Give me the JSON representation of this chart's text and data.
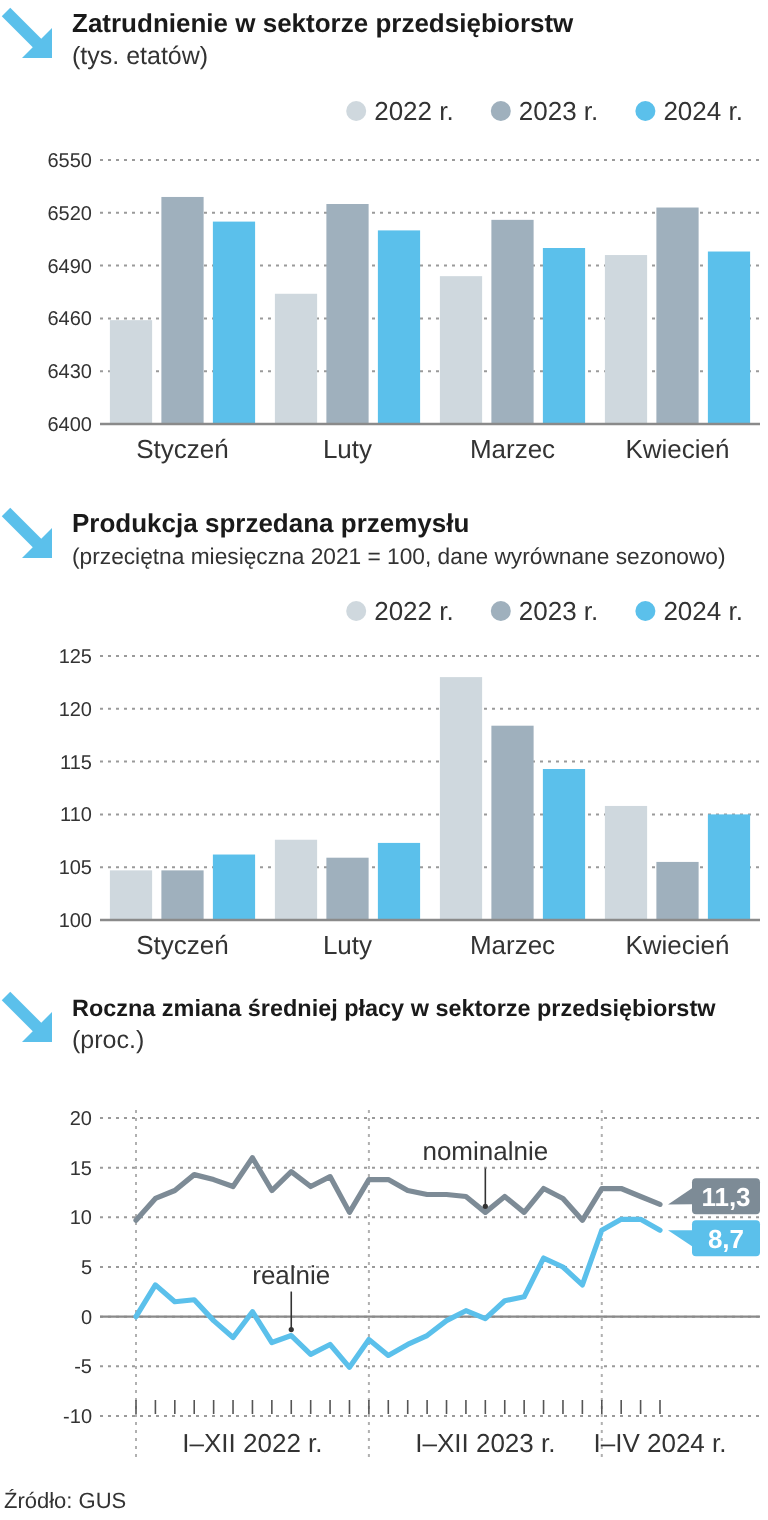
{
  "chart_data": [
    {
      "type": "bar",
      "title": "Zatrudnienie w sektorze przedsiębiorstw",
      "subtitle": "(tys. etatów)",
      "categories": [
        "Styczeń",
        "Luty",
        "Marzec",
        "Kwiecień"
      ],
      "series": [
        {
          "name": "2022 r.",
          "color": "#cfd8de",
          "values": [
            6459,
            6474,
            6484,
            6496
          ]
        },
        {
          "name": "2023 r.",
          "color": "#9fb0bd",
          "values": [
            6529,
            6525,
            6516,
            6523
          ]
        },
        {
          "name": "2024 r.",
          "color": "#5bc0eb",
          "values": [
            6515,
            6510,
            6500,
            6498
          ]
        }
      ],
      "ylim": [
        6400,
        6550
      ],
      "yticks": [
        6400,
        6430,
        6460,
        6490,
        6520,
        6550
      ],
      "grid": "y",
      "legend": "top right"
    },
    {
      "type": "bar",
      "title": "Produkcja sprzedana przemysłu",
      "subtitle": "(przeciętna miesięczna 2021 = 100, dane wyrównane sezonowo)",
      "categories": [
        "Styczeń",
        "Luty",
        "Marzec",
        "Kwiecień"
      ],
      "series": [
        {
          "name": "2022 r.",
          "color": "#cfd8de",
          "values": [
            104.7,
            107.6,
            123.0,
            110.8
          ]
        },
        {
          "name": "2023 r.",
          "color": "#9fb0bd",
          "values": [
            104.7,
            105.9,
            118.4,
            105.5
          ]
        },
        {
          "name": "2024 r.",
          "color": "#5bc0eb",
          "values": [
            106.2,
            107.3,
            114.3,
            110.0
          ]
        }
      ],
      "ylim": [
        100,
        125
      ],
      "yticks": [
        100,
        105,
        110,
        115,
        120,
        125
      ],
      "grid": "y",
      "legend": "top right"
    },
    {
      "type": "line",
      "title": "Roczna zmiana średniej płacy w sektorze przedsiębiorstw",
      "subtitle": "(proc.)",
      "categories": [
        null,
        null,
        null,
        null,
        null,
        null,
        "I–XII 2022 r.",
        null,
        null,
        null,
        null,
        null,
        null,
        null,
        null,
        null,
        null,
        null,
        "I–XII 2023 r.",
        null,
        null,
        null,
        null,
        null,
        null,
        null,
        null,
        "I–IV 2024 r."
      ],
      "series": [
        {
          "name": "nominalnie",
          "color": "#7d8b96",
          "values": [
            9.7,
            11.9,
            12.7,
            14.3,
            13.8,
            13.1,
            16.0,
            12.7,
            14.6,
            13.1,
            14.1,
            10.5,
            13.8,
            13.8,
            12.7,
            12.3,
            12.3,
            12.1,
            10.5,
            12.1,
            10.5,
            12.9,
            11.9,
            9.7,
            12.9,
            12.9,
            12.1,
            11.3
          ],
          "value_labels": [
            null,
            null,
            null,
            null,
            null,
            null,
            null,
            null,
            null,
            null,
            null,
            null,
            null,
            null,
            null,
            null,
            null,
            null,
            null,
            null,
            null,
            null,
            null,
            null,
            null,
            null,
            null,
            "11,3"
          ]
        },
        {
          "name": "realnie",
          "color": "#5bc0eb",
          "values": [
            0.0,
            3.2,
            1.5,
            1.7,
            -0.4,
            -2.1,
            0.5,
            -2.6,
            -1.9,
            -3.8,
            -2.8,
            -5.1,
            -2.3,
            -3.9,
            -2.8,
            -1.9,
            -0.4,
            0.6,
            -0.2,
            1.6,
            2.0,
            5.9,
            5.0,
            3.2,
            8.7,
            9.8,
            9.8,
            8.7
          ],
          "value_labels": [
            null,
            null,
            null,
            null,
            null,
            null,
            null,
            null,
            null,
            null,
            null,
            null,
            null,
            null,
            null,
            null,
            null,
            null,
            null,
            null,
            null,
            null,
            null,
            null,
            null,
            null,
            null,
            "8,7"
          ]
        }
      ],
      "ylim": [
        -10,
        20
      ],
      "yticks": [
        -10,
        -5,
        0,
        5,
        10,
        15,
        20
      ],
      "grid": true,
      "ref_lines": [
        {
          "axis": "y",
          "value": 0,
          "color": "#8a8a8a",
          "line_style": "solid"
        }
      ],
      "annotations": [
        "Źródło: GUS"
      ]
    }
  ]
}
